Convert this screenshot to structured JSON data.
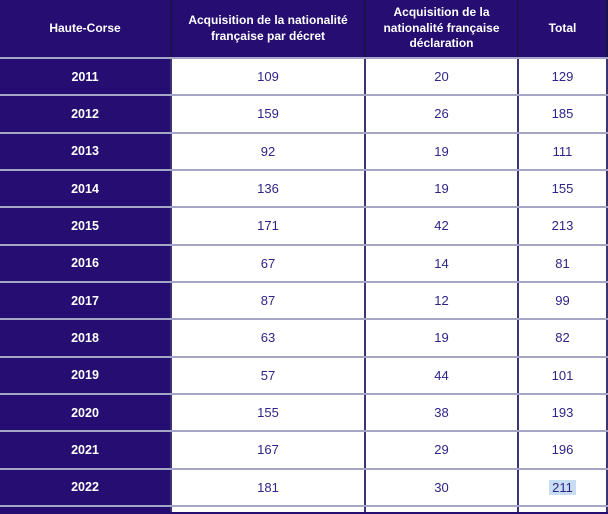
{
  "table": {
    "columns": [
      {
        "label": "Haute-Corse"
      },
      {
        "label": "Acquisition de la nationalité\nfrançaise par décret"
      },
      {
        "label": "Acquisition de la\nnationalité française\ndéclaration"
      },
      {
        "label": "Total"
      }
    ],
    "rows": [
      {
        "year": "2011",
        "par_decret": "109",
        "par_declaration": "20",
        "total": "129"
      },
      {
        "year": "2012",
        "par_decret": "159",
        "par_declaration": "26",
        "total": "185"
      },
      {
        "year": "2013",
        "par_decret": "92",
        "par_declaration": "19",
        "total": "111"
      },
      {
        "year": "2014",
        "par_decret": "136",
        "par_declaration": "19",
        "total": "155"
      },
      {
        "year": "2015",
        "par_decret": "171",
        "par_declaration": "42",
        "total": "213"
      },
      {
        "year": "2016",
        "par_decret": "67",
        "par_declaration": "14",
        "total": "81"
      },
      {
        "year": "2017",
        "par_decret": "87",
        "par_declaration": "12",
        "total": "99"
      },
      {
        "year": "2018",
        "par_decret": "63",
        "par_declaration": "19",
        "total": "82"
      },
      {
        "year": "2019",
        "par_decret": "57",
        "par_declaration": "44",
        "total": "101"
      },
      {
        "year": "2020",
        "par_decret": "155",
        "par_declaration": "38",
        "total": "193"
      },
      {
        "year": "2021",
        "par_decret": "167",
        "par_declaration": "29",
        "total": "196"
      },
      {
        "year": "2022",
        "par_decret": "181",
        "par_declaration": "30",
        "total": "211"
      }
    ],
    "selection": {
      "row_year": "2022",
      "column": "total",
      "value": "211"
    }
  },
  "colors": {
    "navy_fill": "#250d71",
    "header_text": "#ffffff",
    "value_text": "#2e2488",
    "horizontal_border": "#a5a5c6",
    "vertical_border": "#3a3472",
    "selection_highlight": "#c9ddf2"
  },
  "chart_data": {
    "type": "table",
    "title": "Haute-Corse",
    "columns": [
      "Haute-Corse",
      "Acquisition de la nationalité française par décret",
      "Acquisition de la nationalité française déclaration",
      "Total"
    ],
    "categories": [
      "2011",
      "2012",
      "2013",
      "2014",
      "2015",
      "2016",
      "2017",
      "2018",
      "2019",
      "2020",
      "2021",
      "2022"
    ],
    "series": [
      {
        "name": "Acquisition de la nationalité française par décret",
        "values": [
          109,
          159,
          92,
          136,
          171,
          67,
          87,
          63,
          57,
          155,
          167,
          181
        ]
      },
      {
        "name": "Acquisition de la nationalité française déclaration",
        "values": [
          20,
          26,
          19,
          19,
          42,
          14,
          12,
          19,
          44,
          38,
          29,
          30
        ]
      },
      {
        "name": "Total",
        "values": [
          129,
          185,
          111,
          155,
          213,
          81,
          99,
          82,
          101,
          193,
          196,
          211
        ]
      }
    ],
    "annotations": [
      "Cell 2022/Total (211) shown with text-selection highlight"
    ]
  }
}
